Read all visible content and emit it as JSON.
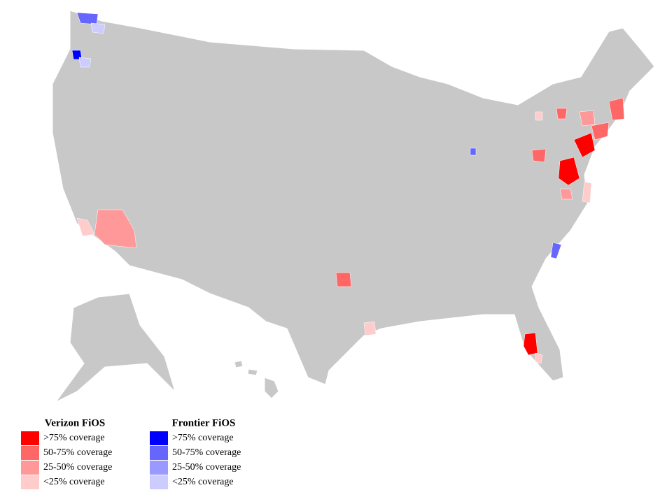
{
  "legend": {
    "groups": [
      {
        "title": "Verizon FiOS",
        "items": [
          {
            "label": ">75% coverage",
            "color": "#ff0000"
          },
          {
            "label": "50-75% coverage",
            "color": "#ff6666"
          },
          {
            "label": "25-50% coverage",
            "color": "#ff9999"
          },
          {
            "label": "<25% coverage",
            "color": "#ffcccc"
          }
        ]
      },
      {
        "title": "Frontier FiOS",
        "items": [
          {
            "label": ">75% coverage",
            "color": "#0000ff"
          },
          {
            "label": "50-75% coverage",
            "color": "#6666ff"
          },
          {
            "label": "25-50% coverage",
            "color": "#9999ff"
          },
          {
            "label": "<25% coverage",
            "color": "#ccccff"
          }
        ]
      }
    ]
  }
}
